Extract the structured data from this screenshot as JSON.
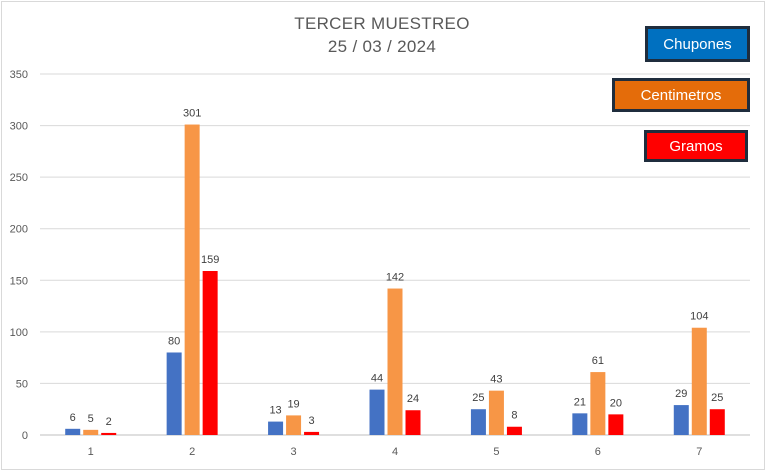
{
  "chart_data": {
    "type": "bar",
    "title": "TERCER MUESTREO",
    "subtitle": "25 / 03 / 2024",
    "xlabel": "",
    "ylabel": "",
    "categories": [
      "1",
      "2",
      "3",
      "4",
      "5",
      "6",
      "7"
    ],
    "series": [
      {
        "name": "Chupones",
        "color": "#4472c4",
        "values": [
          6,
          80,
          13,
          44,
          25,
          21,
          29
        ]
      },
      {
        "name": "Centimetros",
        "color": "#f79646",
        "values": [
          5,
          301,
          19,
          142,
          43,
          61,
          104
        ]
      },
      {
        "name": "Gramos",
        "color": "#ff0000",
        "values": [
          2,
          159,
          3,
          24,
          8,
          20,
          25
        ]
      }
    ],
    "ylim": [
      0,
      350
    ],
    "yticks": [
      0,
      50,
      100,
      150,
      200,
      250,
      300,
      350
    ],
    "grid": true,
    "legend_placement": "top-right",
    "data_labels": true
  },
  "legend": {
    "chupones": "Chupones",
    "centimetros": "Centimetros",
    "gramos": "Gramos"
  }
}
